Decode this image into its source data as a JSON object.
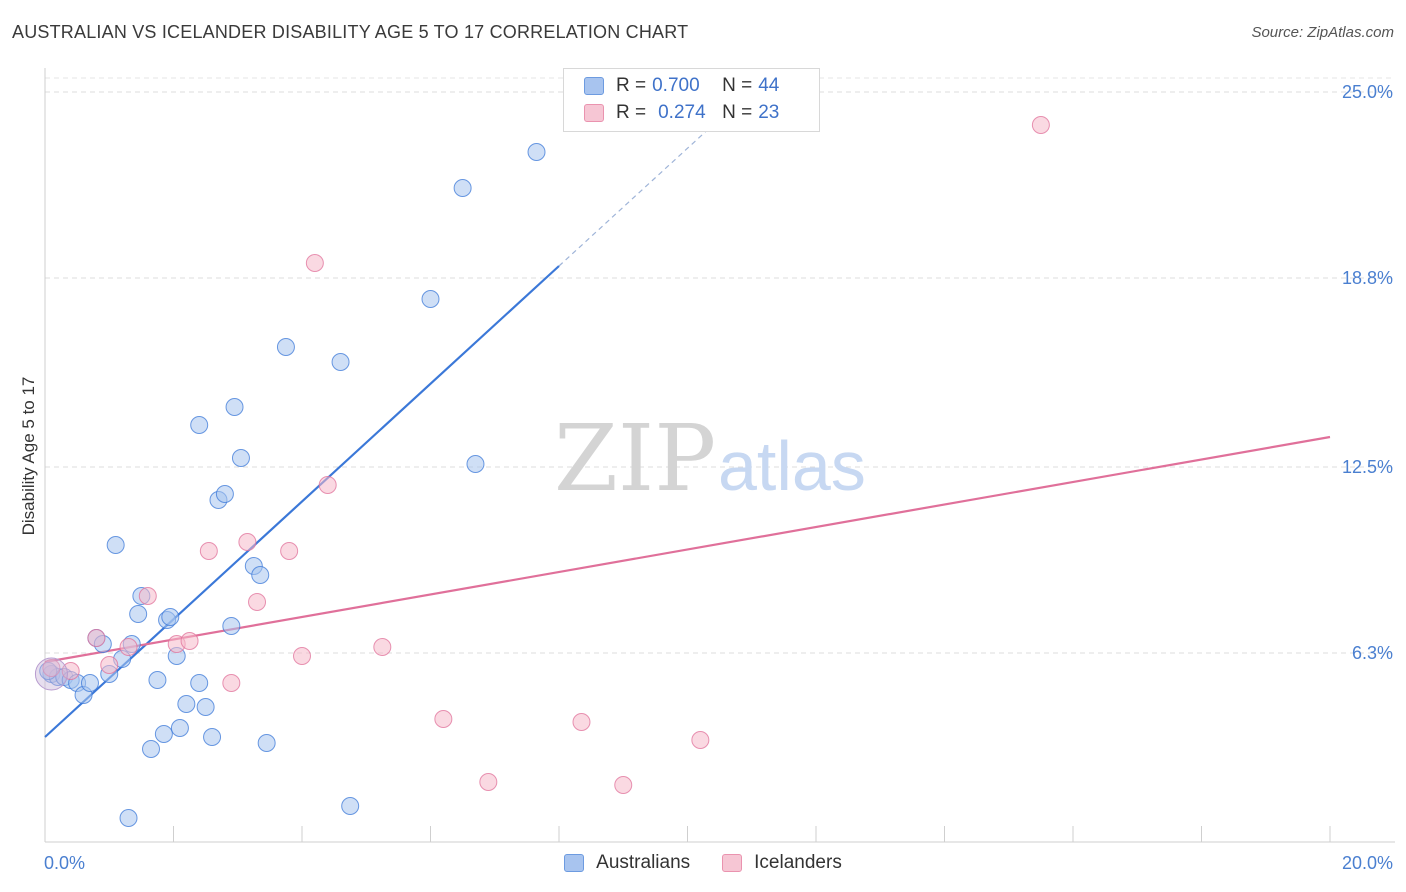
{
  "title": "AUSTRALIAN VS ICELANDER DISABILITY AGE 5 TO 17 CORRELATION CHART",
  "source": "Source: ZipAtlas.com",
  "watermark": {
    "zip": "ZIP",
    "atlas": "atlas"
  },
  "legend": {
    "rows": [
      {
        "r_label": "R = ",
        "r_value": "0.700",
        "n_label": "N = ",
        "n_value": "44",
        "color": "#a8c4ef"
      },
      {
        "r_label": "R = ",
        "r_value": "0.274",
        "n_label": "N = ",
        "n_value": "23",
        "color": "#f6b9cb"
      }
    ]
  },
  "bottom_legend": [
    "Australians",
    "Icelanders"
  ],
  "chart_data": {
    "type": "scatter",
    "title": "AUSTRALIAN VS ICELANDER DISABILITY AGE 5 TO 17 CORRELATION CHART",
    "xlabel": "",
    "ylabel": "Disability Age 5 to 17",
    "xlim": [
      0,
      20
    ],
    "ylim": [
      0,
      25.8
    ],
    "x_tick_labels": [
      "0.0%",
      "20.0%"
    ],
    "y_ticks": [
      6.3,
      12.5,
      18.8,
      25.0
    ],
    "y_tick_labels": [
      "6.3%",
      "12.5%",
      "18.8%",
      "25.0%"
    ],
    "grid": true,
    "legend_position": "top-center",
    "series": [
      {
        "name": "Australians",
        "color": "#3b78d8",
        "fill": "#a8c4ef",
        "r": 0.7,
        "n": 44,
        "trend": {
          "x0": 0,
          "y0": 3.5,
          "x1": 8.0,
          "y1": 19.2,
          "dash_to_x": 10.7
        },
        "points": [
          [
            0.1,
            5.6
          ],
          [
            0.2,
            5.5
          ],
          [
            0.3,
            5.5
          ],
          [
            0.4,
            5.4
          ],
          [
            0.5,
            5.3
          ],
          [
            0.6,
            4.9
          ],
          [
            0.7,
            5.3
          ],
          [
            0.8,
            6.8
          ],
          [
            0.9,
            6.6
          ],
          [
            1.0,
            5.6
          ],
          [
            1.1,
            9.9
          ],
          [
            1.2,
            6.1
          ],
          [
            1.3,
            0.8
          ],
          [
            1.35,
            6.6
          ],
          [
            1.45,
            7.6
          ],
          [
            1.5,
            8.2
          ],
          [
            1.65,
            3.1
          ],
          [
            1.75,
            5.4
          ],
          [
            1.85,
            3.6
          ],
          [
            1.9,
            7.4
          ],
          [
            1.95,
            7.5
          ],
          [
            2.05,
            6.2
          ],
          [
            2.1,
            3.8
          ],
          [
            2.2,
            4.6
          ],
          [
            2.4,
            13.9
          ],
          [
            2.4,
            5.3
          ],
          [
            2.5,
            4.5
          ],
          [
            2.6,
            3.5
          ],
          [
            2.7,
            11.4
          ],
          [
            2.8,
            11.6
          ],
          [
            2.9,
            7.2
          ],
          [
            2.95,
            14.5
          ],
          [
            3.05,
            12.8
          ],
          [
            3.25,
            9.2
          ],
          [
            3.35,
            8.9
          ],
          [
            3.45,
            3.3
          ],
          [
            3.75,
            16.5
          ],
          [
            4.6,
            16.0
          ],
          [
            4.75,
            1.2
          ],
          [
            6.0,
            18.1
          ],
          [
            6.5,
            21.8
          ],
          [
            6.7,
            12.6
          ],
          [
            7.65,
            23.0
          ],
          [
            0.05,
            5.7
          ]
        ]
      },
      {
        "name": "Icelanders",
        "color": "#e0709a",
        "fill": "#f6b9cb",
        "r": 0.274,
        "n": 23,
        "trend": {
          "x0": 0,
          "y0": 6.0,
          "x1": 20,
          "y1": 13.5
        },
        "points": [
          [
            0.1,
            5.8
          ],
          [
            0.4,
            5.7
          ],
          [
            0.8,
            6.8
          ],
          [
            1.0,
            5.9
          ],
          [
            1.3,
            6.5
          ],
          [
            1.6,
            8.2
          ],
          [
            2.05,
            6.6
          ],
          [
            2.25,
            6.7
          ],
          [
            2.55,
            9.7
          ],
          [
            2.9,
            5.3
          ],
          [
            3.15,
            10.0
          ],
          [
            3.3,
            8.0
          ],
          [
            3.8,
            9.7
          ],
          [
            4.0,
            6.2
          ],
          [
            4.2,
            19.3
          ],
          [
            4.4,
            11.9
          ],
          [
            5.25,
            6.5
          ],
          [
            6.2,
            4.1
          ],
          [
            6.9,
            2.0
          ],
          [
            8.35,
            4.0
          ],
          [
            9.0,
            1.9
          ],
          [
            10.2,
            3.4
          ],
          [
            15.5,
            23.9
          ]
        ]
      }
    ]
  }
}
